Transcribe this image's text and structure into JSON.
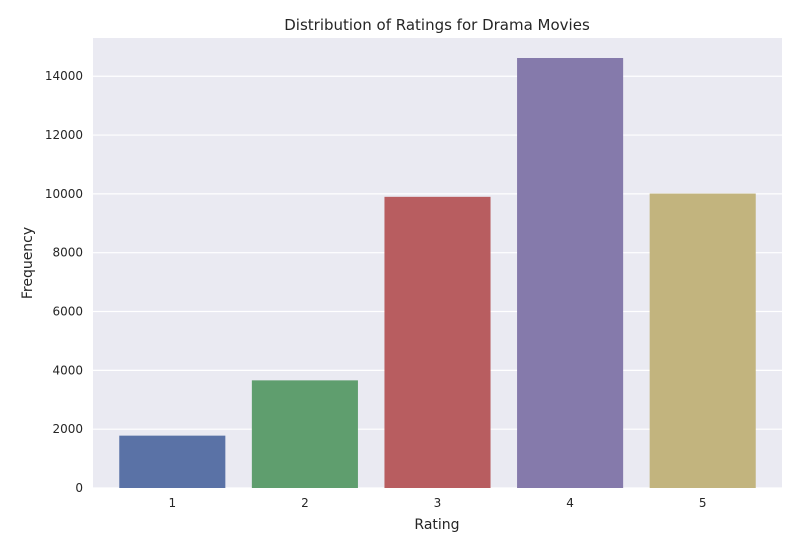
{
  "chart_data": {
    "type": "bar",
    "title": "Distribution of Ratings for Drama Movies",
    "xlabel": "Rating",
    "ylabel": "Frequency",
    "categories": [
      "1",
      "2",
      "3",
      "4",
      "5"
    ],
    "values": [
      1780,
      3660,
      9900,
      14620,
      10010
    ],
    "colors": [
      "#5a72a6",
      "#5f9e6e",
      "#b85d60",
      "#857aab",
      "#c2b47e"
    ],
    "ylim": [
      0,
      15300
    ],
    "yticks": [
      0,
      2000,
      4000,
      6000,
      8000,
      10000,
      12000,
      14000
    ],
    "grid": true,
    "background": "#eaeaf2",
    "grid_color": "#ffffff"
  }
}
